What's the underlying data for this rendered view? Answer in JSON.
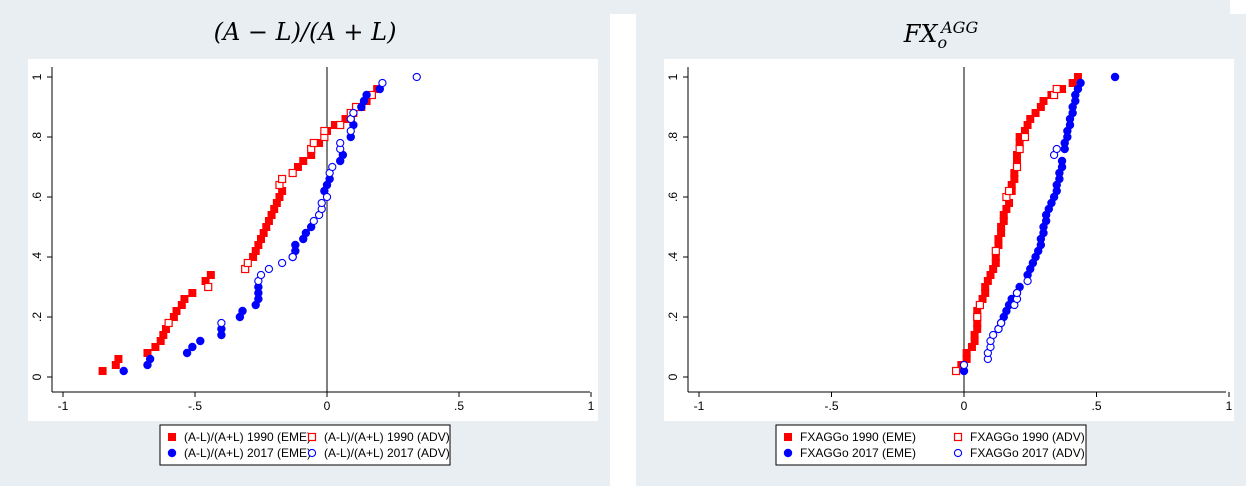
{
  "chart_data": [
    {
      "type": "scatter",
      "title": "(A − L)/(A + L)",
      "xlim": [
        -1,
        1
      ],
      "ylim": [
        0,
        1
      ],
      "xticks": [
        -1,
        -0.5,
        0,
        0.5,
        1
      ],
      "xtick_labels": [
        "-1",
        "-.5",
        "0",
        ".5",
        "1"
      ],
      "yticks": [
        0,
        0.2,
        0.4,
        0.6,
        0.8,
        1
      ],
      "ytick_labels": [
        "0",
        ".2",
        ".4",
        ".6",
        ".8",
        "1"
      ],
      "vline_x": 0,
      "legend_position": "bottom",
      "series": [
        {
          "name": "(A-L)/(A+L) 1990 (EME)",
          "color": "#ff0000",
          "marker": "square-filled",
          "points": [
            [
              -0.85,
              0.02
            ],
            [
              -0.8,
              0.04
            ],
            [
              -0.79,
              0.06
            ],
            [
              -0.68,
              0.08
            ],
            [
              -0.65,
              0.1
            ],
            [
              -0.63,
              0.12
            ],
            [
              -0.62,
              0.14
            ],
            [
              -0.61,
              0.16
            ],
            [
              -0.6,
              0.18
            ],
            [
              -0.58,
              0.2
            ],
            [
              -0.57,
              0.22
            ],
            [
              -0.55,
              0.24
            ],
            [
              -0.54,
              0.26
            ],
            [
              -0.51,
              0.28
            ],
            [
              -0.46,
              0.32
            ],
            [
              -0.44,
              0.34
            ],
            [
              -0.28,
              0.4
            ],
            [
              -0.27,
              0.42
            ],
            [
              -0.26,
              0.44
            ],
            [
              -0.25,
              0.46
            ],
            [
              -0.24,
              0.48
            ],
            [
              -0.23,
              0.5
            ],
            [
              -0.22,
              0.52
            ],
            [
              -0.21,
              0.54
            ],
            [
              -0.2,
              0.56
            ],
            [
              -0.19,
              0.58
            ],
            [
              -0.18,
              0.6
            ],
            [
              -0.17,
              0.62
            ],
            [
              -0.11,
              0.7
            ],
            [
              -0.09,
              0.72
            ],
            [
              -0.06,
              0.74
            ],
            [
              -0.03,
              0.78
            ],
            [
              0.0,
              0.82
            ],
            [
              0.03,
              0.84
            ],
            [
              0.07,
              0.86
            ],
            [
              0.1,
              0.88
            ],
            [
              0.13,
              0.9
            ],
            [
              0.15,
              0.92
            ],
            [
              0.19,
              0.96
            ]
          ]
        },
        {
          "name": "(A-L)/(A+L) 1990 (ADV)",
          "color": "#ff0000",
          "marker": "square-hollow",
          "points": [
            [
              -0.6,
              0.18
            ],
            [
              -0.45,
              0.3
            ],
            [
              -0.31,
              0.36
            ],
            [
              -0.3,
              0.38
            ],
            [
              -0.18,
              0.64
            ],
            [
              -0.17,
              0.66
            ],
            [
              -0.13,
              0.68
            ],
            [
              -0.06,
              0.76
            ],
            [
              -0.05,
              0.78
            ],
            [
              -0.01,
              0.8
            ],
            [
              -0.01,
              0.82
            ],
            [
              0.05,
              0.84
            ],
            [
              0.09,
              0.86
            ],
            [
              0.09,
              0.88
            ],
            [
              0.11,
              0.9
            ],
            [
              0.17,
              0.94
            ]
          ]
        },
        {
          "name": "(A-L)/(A+L) 2017 (EME)",
          "color": "#0000ff",
          "marker": "circle-filled",
          "points": [
            [
              -0.77,
              0.02
            ],
            [
              -0.68,
              0.04
            ],
            [
              -0.67,
              0.06
            ],
            [
              -0.53,
              0.08
            ],
            [
              -0.51,
              0.1
            ],
            [
              -0.48,
              0.12
            ],
            [
              -0.4,
              0.14
            ],
            [
              -0.4,
              0.16
            ],
            [
              -0.33,
              0.2
            ],
            [
              -0.32,
              0.22
            ],
            [
              -0.27,
              0.24
            ],
            [
              -0.26,
              0.26
            ],
            [
              -0.26,
              0.28
            ],
            [
              -0.26,
              0.3
            ],
            [
              -0.13,
              0.4
            ],
            [
              -0.12,
              0.42
            ],
            [
              -0.12,
              0.44
            ],
            [
              -0.09,
              0.46
            ],
            [
              -0.08,
              0.48
            ],
            [
              -0.06,
              0.5
            ],
            [
              -0.01,
              0.62
            ],
            [
              0.0,
              0.64
            ],
            [
              0.01,
              0.66
            ],
            [
              0.05,
              0.72
            ],
            [
              0.06,
              0.74
            ],
            [
              0.09,
              0.8
            ],
            [
              0.1,
              0.84
            ],
            [
              0.13,
              0.9
            ],
            [
              0.14,
              0.92
            ],
            [
              0.15,
              0.94
            ],
            [
              0.2,
              0.96
            ]
          ]
        },
        {
          "name": "(A-L)/(A+L) 2017 (ADV)",
          "color": "#0000ff",
          "marker": "circle-hollow",
          "points": [
            [
              -0.4,
              0.18
            ],
            [
              -0.26,
              0.32
            ],
            [
              -0.25,
              0.34
            ],
            [
              -0.22,
              0.36
            ],
            [
              -0.17,
              0.38
            ],
            [
              -0.13,
              0.4
            ],
            [
              -0.05,
              0.52
            ],
            [
              -0.03,
              0.54
            ],
            [
              -0.02,
              0.56
            ],
            [
              -0.02,
              0.58
            ],
            [
              0.0,
              0.6
            ],
            [
              0.01,
              0.68
            ],
            [
              0.02,
              0.7
            ],
            [
              0.05,
              0.76
            ],
            [
              0.05,
              0.78
            ],
            [
              0.09,
              0.82
            ],
            [
              0.09,
              0.86
            ],
            [
              0.1,
              0.88
            ],
            [
              0.21,
              0.98
            ],
            [
              0.34,
              1.0
            ]
          ]
        }
      ]
    },
    {
      "type": "scatter",
      "title": "FX_o^AGG",
      "xlim": [
        -1,
        1
      ],
      "ylim": [
        0,
        1
      ],
      "xticks": [
        -1,
        -0.5,
        0,
        0.5,
        1
      ],
      "xtick_labels": [
        "-1",
        "-.5",
        "0",
        ".5",
        "1"
      ],
      "yticks": [
        0,
        0.2,
        0.4,
        0.6,
        0.8,
        1
      ],
      "ytick_labels": [
        "0",
        ".2",
        ".4",
        ".6",
        ".8",
        "1"
      ],
      "vline_x": 0,
      "legend_position": "bottom",
      "series": [
        {
          "name": "FXAGGo 1990 (EME)",
          "color": "#ff0000",
          "marker": "square-filled",
          "points": [
            [
              -0.01,
              0.04
            ],
            [
              0.01,
              0.06
            ],
            [
              0.01,
              0.08
            ],
            [
              0.03,
              0.1
            ],
            [
              0.04,
              0.12
            ],
            [
              0.04,
              0.14
            ],
            [
              0.05,
              0.16
            ],
            [
              0.05,
              0.18
            ],
            [
              0.05,
              0.2
            ],
            [
              0.05,
              0.22
            ],
            [
              0.06,
              0.24
            ],
            [
              0.07,
              0.26
            ],
            [
              0.08,
              0.28
            ],
            [
              0.08,
              0.3
            ],
            [
              0.09,
              0.32
            ],
            [
              0.1,
              0.34
            ],
            [
              0.11,
              0.36
            ],
            [
              0.12,
              0.38
            ],
            [
              0.12,
              0.4
            ],
            [
              0.13,
              0.44
            ],
            [
              0.13,
              0.46
            ],
            [
              0.14,
              0.48
            ],
            [
              0.14,
              0.5
            ],
            [
              0.15,
              0.52
            ],
            [
              0.15,
              0.54
            ],
            [
              0.16,
              0.56
            ],
            [
              0.17,
              0.58
            ],
            [
              0.18,
              0.62
            ],
            [
              0.18,
              0.64
            ],
            [
              0.19,
              0.66
            ],
            [
              0.19,
              0.68
            ],
            [
              0.2,
              0.72
            ],
            [
              0.2,
              0.74
            ],
            [
              0.21,
              0.78
            ],
            [
              0.21,
              0.8
            ],
            [
              0.23,
              0.82
            ],
            [
              0.24,
              0.84
            ],
            [
              0.25,
              0.86
            ],
            [
              0.27,
              0.88
            ],
            [
              0.29,
              0.9
            ],
            [
              0.3,
              0.92
            ],
            [
              0.33,
              0.94
            ],
            [
              0.37,
              0.96
            ],
            [
              0.41,
              0.98
            ],
            [
              0.43,
              1.0
            ]
          ]
        },
        {
          "name": "FXAGGo 1990 (ADV)",
          "color": "#ff0000",
          "marker": "square-hollow",
          "points": [
            [
              -0.03,
              0.02
            ],
            [
              0.05,
              0.2
            ],
            [
              0.06,
              0.24
            ],
            [
              0.12,
              0.42
            ],
            [
              0.16,
              0.6
            ],
            [
              0.17,
              0.62
            ],
            [
              0.2,
              0.7
            ],
            [
              0.21,
              0.76
            ],
            [
              0.23,
              0.8
            ],
            [
              0.34,
              0.94
            ],
            [
              0.35,
              0.96
            ]
          ]
        },
        {
          "name": "FXAGGo 2017 (EME)",
          "color": "#0000ff",
          "marker": "circle-filled",
          "points": [
            [
              0.0,
              0.02
            ],
            [
              0.13,
              0.16
            ],
            [
              0.14,
              0.18
            ],
            [
              0.15,
              0.2
            ],
            [
              0.16,
              0.22
            ],
            [
              0.17,
              0.24
            ],
            [
              0.18,
              0.26
            ],
            [
              0.2,
              0.28
            ],
            [
              0.21,
              0.3
            ],
            [
              0.24,
              0.34
            ],
            [
              0.25,
              0.36
            ],
            [
              0.26,
              0.38
            ],
            [
              0.27,
              0.4
            ],
            [
              0.28,
              0.42
            ],
            [
              0.29,
              0.44
            ],
            [
              0.29,
              0.46
            ],
            [
              0.3,
              0.48
            ],
            [
              0.3,
              0.5
            ],
            [
              0.31,
              0.52
            ],
            [
              0.31,
              0.54
            ],
            [
              0.32,
              0.56
            ],
            [
              0.33,
              0.58
            ],
            [
              0.34,
              0.6
            ],
            [
              0.35,
              0.62
            ],
            [
              0.35,
              0.64
            ],
            [
              0.36,
              0.66
            ],
            [
              0.36,
              0.68
            ],
            [
              0.37,
              0.7
            ],
            [
              0.37,
              0.72
            ],
            [
              0.38,
              0.76
            ],
            [
              0.38,
              0.78
            ],
            [
              0.39,
              0.8
            ],
            [
              0.39,
              0.82
            ],
            [
              0.4,
              0.84
            ],
            [
              0.4,
              0.86
            ],
            [
              0.41,
              0.88
            ],
            [
              0.41,
              0.9
            ],
            [
              0.42,
              0.92
            ],
            [
              0.42,
              0.94
            ],
            [
              0.43,
              0.96
            ],
            [
              0.44,
              0.98
            ],
            [
              0.57,
              1.0
            ]
          ]
        },
        {
          "name": "FXAGGo 2017 (ADV)",
          "color": "#0000ff",
          "marker": "circle-hollow",
          "points": [
            [
              0.0,
              0.04
            ],
            [
              0.09,
              0.06
            ],
            [
              0.09,
              0.08
            ],
            [
              0.1,
              0.1
            ],
            [
              0.1,
              0.12
            ],
            [
              0.11,
              0.14
            ],
            [
              0.13,
              0.16
            ],
            [
              0.14,
              0.18
            ],
            [
              0.19,
              0.24
            ],
            [
              0.2,
              0.26
            ],
            [
              0.2,
              0.28
            ],
            [
              0.24,
              0.32
            ],
            [
              0.34,
              0.74
            ],
            [
              0.35,
              0.76
            ]
          ]
        }
      ]
    }
  ]
}
